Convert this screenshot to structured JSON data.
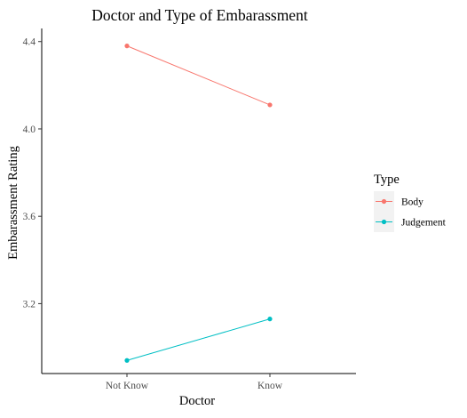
{
  "chart_data": {
    "type": "line",
    "title": "Doctor and Type of Embarassment",
    "xlabel": "Doctor",
    "ylabel": "Embarassment Rating",
    "categories": [
      "Not Know",
      "Know"
    ],
    "y_ticks": [
      3.2,
      3.6,
      4.0,
      4.4
    ],
    "y_tick_labels": [
      "3.2",
      "3.6",
      "4.0",
      "4.4"
    ],
    "ylim": [
      2.88,
      4.46
    ],
    "grid": false,
    "legend": {
      "title": "Type",
      "position": "right"
    },
    "series": [
      {
        "name": "Body",
        "values": [
          4.38,
          4.11
        ],
        "color": "#F8766D"
      },
      {
        "name": "Judgement",
        "values": [
          2.94,
          3.13
        ],
        "color": "#00BFC4"
      }
    ]
  }
}
